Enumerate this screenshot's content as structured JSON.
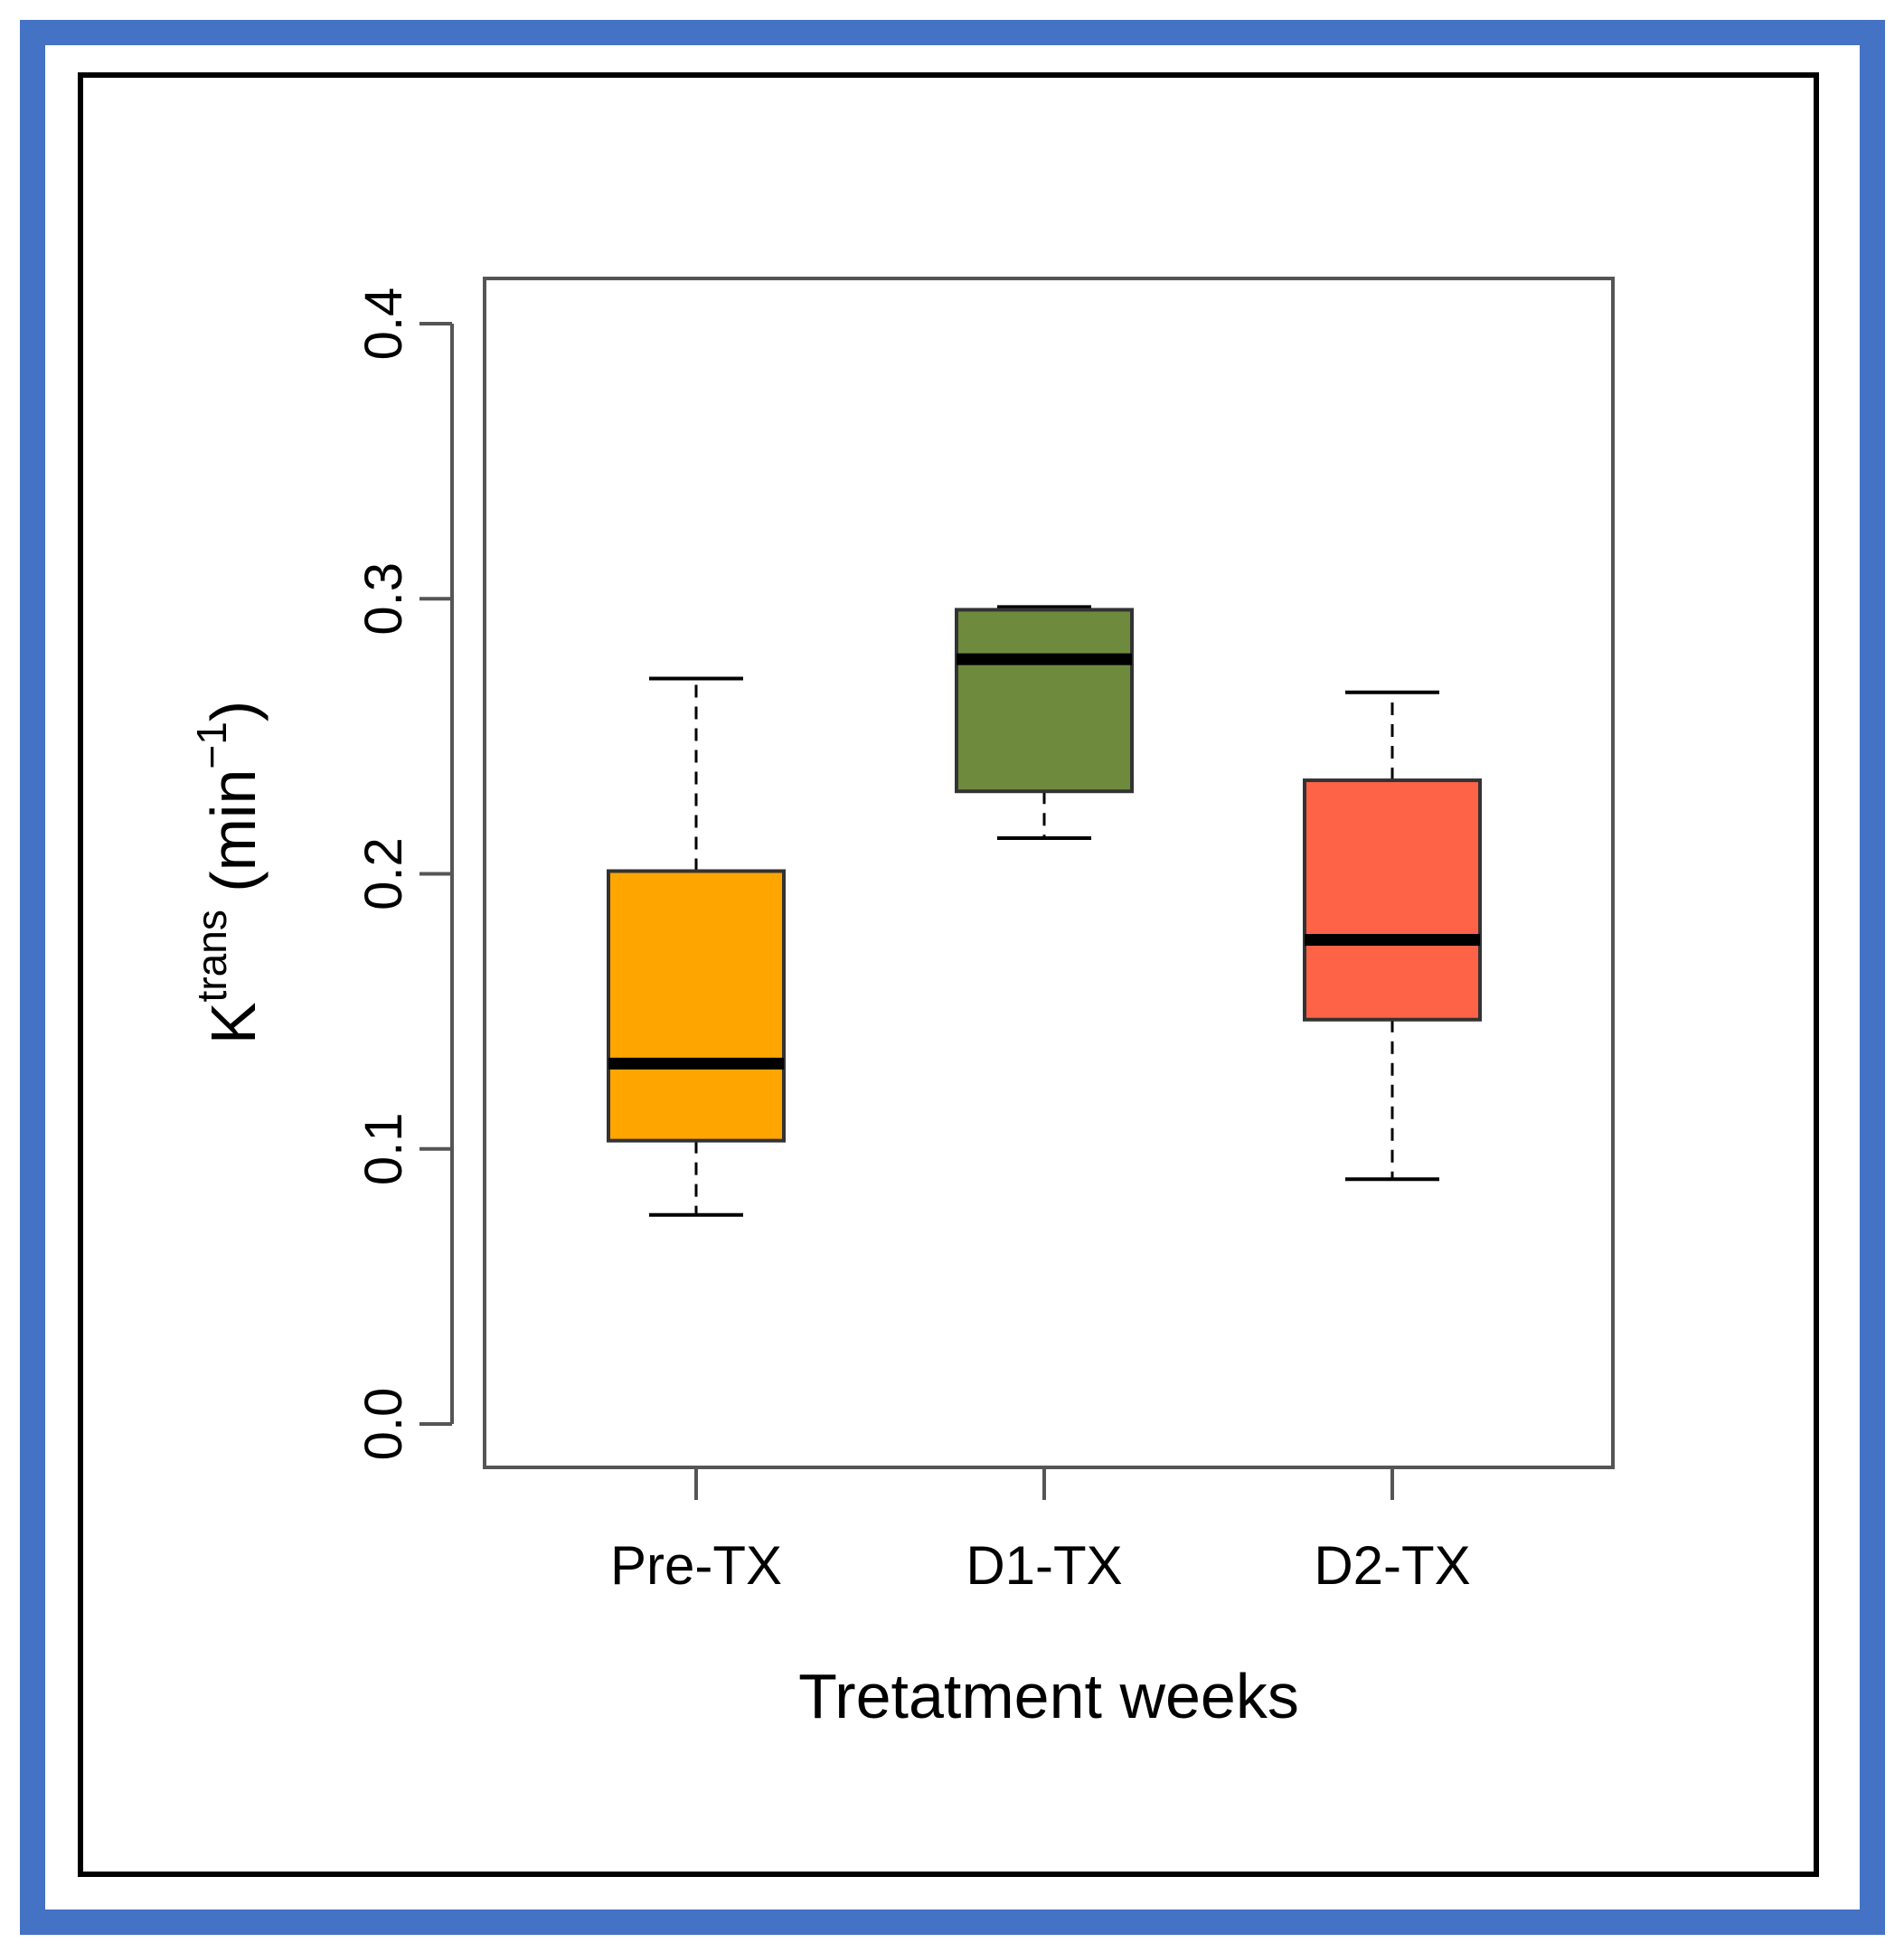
{
  "chart_data": {
    "type": "boxplot",
    "xlabel": "Tretatment weeks",
    "ylabel": {
      "base": "K",
      "superscript": "trans",
      "unit_open": " (min",
      "unit_superscript": "−1",
      "unit_close": ")"
    },
    "ylim": [
      0.0,
      0.42
    ],
    "yticks": [
      0.0,
      0.1,
      0.2,
      0.3,
      0.4
    ],
    "ytick_labels": [
      "0.0",
      "0.1",
      "0.2",
      "0.3",
      "0.4"
    ],
    "categories": [
      "Pre-TX",
      "D1-TX",
      "D2-TX"
    ],
    "boxes": [
      {
        "name": "Pre-TX",
        "whisker_low": 0.076,
        "q1": 0.103,
        "median": 0.131,
        "q3": 0.201,
        "whisker_high": 0.271,
        "color": "#FFA500"
      },
      {
        "name": "D1-TX",
        "whisker_low": 0.213,
        "q1": 0.23,
        "median": 0.278,
        "q3": 0.296,
        "whisker_high": 0.297,
        "color": "#6E8B3D"
      },
      {
        "name": "D2-TX",
        "whisker_low": 0.089,
        "q1": 0.147,
        "median": 0.176,
        "q3": 0.234,
        "whisker_high": 0.266,
        "color": "#FF6347"
      }
    ]
  },
  "colors": {
    "outer_frame": "#4472C4",
    "inner_frame": "#000000",
    "axis": "#555555"
  }
}
